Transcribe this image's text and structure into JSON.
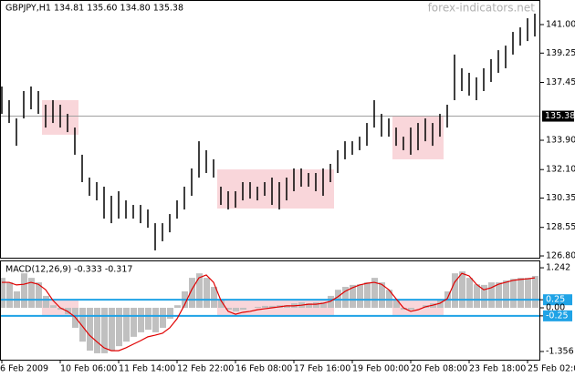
{
  "chart_data": [
    {
      "type": "ohlc",
      "title": "GBPJPY,H1  134.81 135.60 134.80 135.38",
      "watermark": "forex-indicators.net",
      "color": "#000000",
      "categories": [
        "6 Feb 2009",
        null,
        null,
        null,
        null,
        null,
        null,
        null,
        "10 Feb 06:00",
        null,
        null,
        null,
        null,
        null,
        null,
        null,
        "11 Feb 14:00",
        null,
        null,
        null,
        null,
        null,
        null,
        null,
        "12 Feb 22:00",
        null,
        null,
        null,
        null,
        null,
        null,
        null,
        "16 Feb 08:00",
        null,
        null,
        null,
        null,
        null,
        null,
        null,
        "17 Feb 16:00",
        null,
        null,
        null,
        null,
        null,
        null,
        null,
        "19 Feb 00:00",
        null,
        null,
        null,
        null,
        null,
        null,
        null,
        "20 Feb 08:00",
        null,
        null,
        null,
        null,
        null,
        null,
        null,
        "23 Feb 18:00",
        null,
        null,
        null,
        null,
        null,
        null,
        null,
        "25 Feb 02:00",
        null
      ],
      "high": [
        137.2,
        136.36,
        135.24,
        136.92,
        137.2,
        136.92,
        136.08,
        136.36,
        136.08,
        135.52,
        134.68,
        133.01,
        131.61,
        131.33,
        131.05,
        130.49,
        130.77,
        130.21,
        129.93,
        129.93,
        129.65,
        128.81,
        128.81,
        129.37,
        130.21,
        131.05,
        132.17,
        133.84,
        133.29,
        132.73,
        131.05,
        130.77,
        130.77,
        131.33,
        131.33,
        131.05,
        131.33,
        131.61,
        131.33,
        131.61,
        132.17,
        132.17,
        131.89,
        131.89,
        132.17,
        132.45,
        133.29,
        133.84,
        133.84,
        134.12,
        134.96,
        136.36,
        135.52,
        135.24,
        134.68,
        134.12,
        134.68,
        134.96,
        135.24,
        134.96,
        135.52,
        136.08,
        139.16,
        138.32,
        138.04,
        137.76,
        138.32,
        138.88,
        139.43,
        139.71,
        140.55,
        140.83,
        141.39,
        141.67
      ],
      "low": [
        135.52,
        134.96,
        133.56,
        135.24,
        135.8,
        135.52,
        134.68,
        134.96,
        134.68,
        134.4,
        133.01,
        131.33,
        130.49,
        130.21,
        129.09,
        128.81,
        129.09,
        129.09,
        129.09,
        128.81,
        128.53,
        127.14,
        127.7,
        128.25,
        129.09,
        129.65,
        130.49,
        131.61,
        131.89,
        131.61,
        129.93,
        129.65,
        129.76,
        130.21,
        130.32,
        130.21,
        130.49,
        129.93,
        129.65,
        130.21,
        130.77,
        131.05,
        131.05,
        130.77,
        130.49,
        131.33,
        131.89,
        132.73,
        133.01,
        133.29,
        133.56,
        134.68,
        134.12,
        134.12,
        133.56,
        133.29,
        133.01,
        133.29,
        133.84,
        133.56,
        134.12,
        134.68,
        136.36,
        136.92,
        136.64,
        136.36,
        136.92,
        137.48,
        138.04,
        138.32,
        139.16,
        139.71,
        139.99,
        140.27
      ],
      "last": 135.38,
      "last_color": "#a0a0a0",
      "zones": [
        {
          "start": 6,
          "end": 10,
          "high": 136.36,
          "low": 134.24
        },
        {
          "start": 30,
          "end": 45,
          "high": 132.11,
          "low": 129.71
        },
        {
          "start": 54,
          "end": 60,
          "high": 135.41,
          "low": 132.73
        }
      ],
      "zone_color": "#f9d6da",
      "ylim": [
        126.69,
        142.51
      ],
      "yticks": [
        {
          "value": 141,
          "label": "141.00"
        },
        139.25,
        137.45,
        {
          "value": 133.9,
          "label": "133.90"
        },
        {
          "value": 132.1,
          "label": "132.10"
        },
        130.35,
        128.55,
        {
          "value": 126.8,
          "label": "126.80"
        }
      ]
    },
    {
      "type": "macd",
      "title": "MACD(12,26,9) -0.333 -0.317",
      "series": [
        {
          "color": "#c0c0c0",
          "values": [
            0.93,
            0.79,
            0.51,
            1.07,
            0.93,
            0.79,
            0.37,
            0.08,
            -0.06,
            -0.2,
            -0.62,
            -1.05,
            -1.33,
            -1.41,
            -1.41,
            -1.33,
            -1.19,
            -1.05,
            -0.9,
            -0.76,
            -0.68,
            -0.76,
            -0.62,
            -0.34,
            0.08,
            0.51,
            0.93,
            1.07,
            0.93,
            0.65,
            0.23,
            -0.06,
            -0.11,
            -0.06,
            0,
            0.03,
            0.06,
            0.06,
            0.08,
            0.08,
            0.14,
            0.17,
            0.14,
            0.17,
            0.17,
            0.37,
            0.56,
            0.65,
            0.71,
            0.73,
            0.79,
            0.93,
            0.79,
            0.56,
            0.23,
            -0.06,
            -0.06,
            0,
            0.08,
            0.14,
            0.23,
            0.51,
            1.07,
            1.13,
            0.93,
            0.73,
            0.71,
            0.79,
            0.79,
            0.85,
            0.9,
            0.93,
            0.93,
            0.99
          ]
        },
        {
          "color": "#e00000",
          "values": [
            0.79,
            0.79,
            0.71,
            0.73,
            0.79,
            0.73,
            0.56,
            0.23,
            0,
            -0.11,
            -0.28,
            -0.56,
            -0.85,
            -1.05,
            -1.24,
            -1.33,
            -1.33,
            -1.24,
            -1.13,
            -1.02,
            -0.9,
            -0.85,
            -0.79,
            -0.62,
            -0.34,
            0.08,
            0.56,
            0.93,
            1.02,
            0.79,
            0.23,
            -0.11,
            -0.2,
            -0.14,
            -0.11,
            -0.06,
            -0.03,
            0,
            0.03,
            0.06,
            0.06,
            0.08,
            0.11,
            0.11,
            0.14,
            0.2,
            0.34,
            0.51,
            0.62,
            0.71,
            0.76,
            0.79,
            0.73,
            0.56,
            0.28,
            0,
            -0.11,
            -0.06,
            0.03,
            0.08,
            0.14,
            0.28,
            0.79,
            1.07,
            0.99,
            0.73,
            0.56,
            0.62,
            0.73,
            0.79,
            0.85,
            0.88,
            0.9,
            0.93
          ]
        }
      ],
      "levels": [
        0.25,
        -0.25
      ],
      "level_color": "#1fa3e6",
      "ylim": [
        -1.61,
        1.47
      ],
      "yticks": [
        1.242,
        0.25,
        {
          "value": 0,
          "label": "0.00"
        },
        -0.25,
        -1.356
      ]
    }
  ]
}
